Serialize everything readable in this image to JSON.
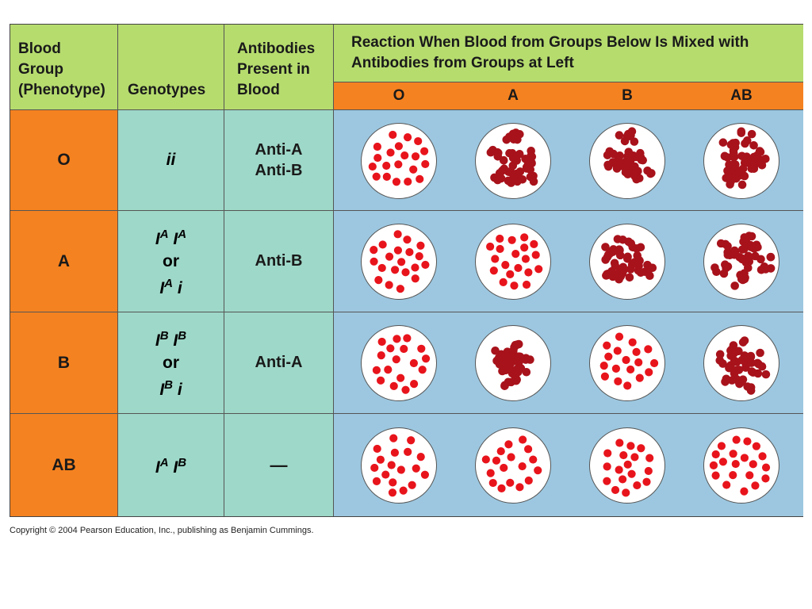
{
  "header": {
    "col1": [
      "Blood",
      "Group",
      "(Phenotype)"
    ],
    "col2": "Genotypes",
    "col3": [
      "Antibodies",
      "Present in",
      "Blood"
    ],
    "reaction_title": [
      "Reaction When Blood from Groups Below Is Mixed with",
      "Antibodies from Groups at Left"
    ],
    "reaction_groups": [
      "O",
      "A",
      "B",
      "AB"
    ]
  },
  "rows": [
    {
      "group": "O",
      "genotype_lines": [
        [
          {
            "base": "i"
          },
          {
            "base": "i"
          }
        ]
      ],
      "antibodies": [
        "Anti-A",
        "Anti-B"
      ],
      "reactions": [
        "none",
        "agglutination",
        "agglutination",
        "agglutination"
      ]
    },
    {
      "group": "A",
      "genotype_lines": [
        [
          {
            "base": "I",
            "sup": "A"
          },
          {
            "base": "I",
            "sup": "A"
          }
        ],
        [
          {
            "base": "or",
            "plain": true
          }
        ],
        [
          {
            "base": "I",
            "sup": "A"
          },
          {
            "base": "i"
          }
        ]
      ],
      "antibodies": [
        "Anti-B"
      ],
      "reactions": [
        "none",
        "none",
        "agglutination",
        "agglutination"
      ]
    },
    {
      "group": "B",
      "genotype_lines": [
        [
          {
            "base": "I",
            "sup": "B"
          },
          {
            "base": "I",
            "sup": "B"
          }
        ],
        [
          {
            "base": "or",
            "plain": true
          }
        ],
        [
          {
            "base": "I",
            "sup": "B"
          },
          {
            "base": "i"
          }
        ]
      ],
      "antibodies": [
        "Anti-A"
      ],
      "reactions": [
        "none",
        "agglutination",
        "none",
        "agglutination"
      ]
    },
    {
      "group": "AB",
      "genotype_lines": [
        [
          {
            "base": "I",
            "sup": "A"
          },
          {
            "base": "I",
            "sup": "B"
          }
        ]
      ],
      "antibodies": [
        "—"
      ],
      "reactions": [
        "none",
        "none",
        "none",
        "none"
      ]
    }
  ],
  "colors": {
    "header_green": "#b6dc6e",
    "phenotype_orange": "#f58220",
    "teal": "#9ed8c8",
    "reaction_blue": "#9dc7e0",
    "cell_red": "#e8141c",
    "clump_dark_red": "#a8121b"
  },
  "copyright": "Copyright © 2004 Pearson Education, Inc., publishing as Benjamin Cummings."
}
